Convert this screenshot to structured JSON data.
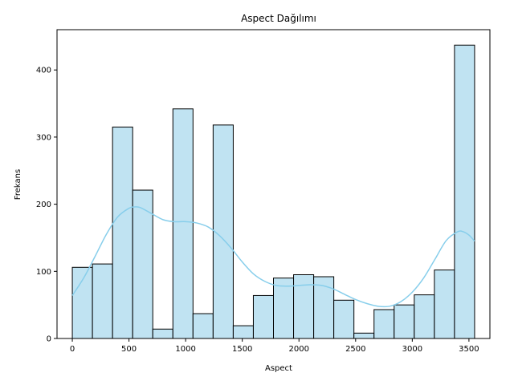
{
  "chart_data": {
    "type": "bar",
    "title": "Aspect Dağılımı",
    "xlabel": "Aspect",
    "ylabel": "Frekans",
    "xlim": [
      -135,
      3685
    ],
    "ylim": [
      0,
      460
    ],
    "x_ticks": [
      0,
      500,
      1000,
      1500,
      2000,
      2500,
      3000,
      3500
    ],
    "y_ticks": [
      0,
      100,
      200,
      300,
      400
    ],
    "bin_start": 0,
    "bin_width": 177.5,
    "values": [
      106,
      111,
      315,
      221,
      14,
      342,
      37,
      318,
      19,
      64,
      90,
      95,
      92,
      57,
      8,
      43,
      50,
      65,
      102,
      437
    ],
    "kde": {
      "x": [
        0,
        100,
        200,
        300,
        400,
        500,
        550,
        600,
        700,
        800,
        900,
        1000,
        1100,
        1200,
        1300,
        1400,
        1500,
        1600,
        1700,
        1800,
        1900,
        2000,
        2100,
        2200,
        2300,
        2400,
        2500,
        2600,
        2700,
        2800,
        2900,
        3000,
        3100,
        3200,
        3300,
        3400,
        3450,
        3500,
        3550
      ],
      "y": [
        64,
        90,
        122,
        155,
        181,
        194,
        196,
        195,
        186,
        177,
        174,
        174,
        172,
        166,
        153,
        135,
        114,
        96,
        85,
        79,
        78,
        79,
        80,
        79,
        74,
        66,
        58,
        52,
        48,
        48,
        55,
        69,
        90,
        118,
        146,
        159,
        159,
        154,
        145
      ]
    },
    "bar_fill": "#c0e3f2",
    "bar_stroke": "#000000",
    "kde_color": "#87ceeb",
    "grid": false,
    "legend": "none"
  }
}
